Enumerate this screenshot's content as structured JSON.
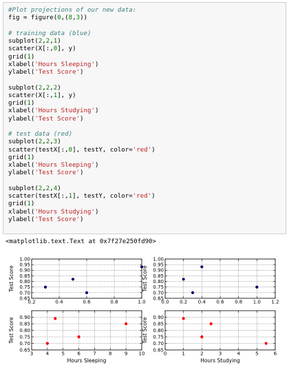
{
  "code": {
    "lines": [
      [
        {
          "t": "#Plot projections of our new data:",
          "k": "c"
        }
      ],
      [
        {
          "t": "fig = figure("
        },
        {
          "t": "0",
          "k": "n"
        },
        {
          "t": ",("
        },
        {
          "t": "8",
          "k": "n"
        },
        {
          "t": ","
        },
        {
          "t": "3",
          "k": "n"
        },
        {
          "t": "))"
        }
      ],
      [],
      [
        {
          "t": "# training data (blue)",
          "k": "c"
        }
      ],
      [
        {
          "t": "subplot("
        },
        {
          "t": "2",
          "k": "n"
        },
        {
          "t": ","
        },
        {
          "t": "2",
          "k": "n"
        },
        {
          "t": ","
        },
        {
          "t": "1",
          "k": "n"
        },
        {
          "t": ")"
        }
      ],
      [
        {
          "t": "scatter(X[:,"
        },
        {
          "t": "0",
          "k": "n"
        },
        {
          "t": "], y)"
        }
      ],
      [
        {
          "t": "grid("
        },
        {
          "t": "1",
          "k": "n"
        },
        {
          "t": ")"
        }
      ],
      [
        {
          "t": "xlabel("
        },
        {
          "t": "'Hours Sleeping'",
          "k": "s"
        },
        {
          "t": ")"
        }
      ],
      [
        {
          "t": "ylabel("
        },
        {
          "t": "'Test Score'",
          "k": "s"
        },
        {
          "t": ")"
        }
      ],
      [],
      [
        {
          "t": "subplot("
        },
        {
          "t": "2",
          "k": "n"
        },
        {
          "t": ","
        },
        {
          "t": "2",
          "k": "n"
        },
        {
          "t": ","
        },
        {
          "t": "2",
          "k": "n"
        },
        {
          "t": ")"
        }
      ],
      [
        {
          "t": "scatter(X[:,"
        },
        {
          "t": "1",
          "k": "n"
        },
        {
          "t": "], y)"
        }
      ],
      [
        {
          "t": "grid("
        },
        {
          "t": "1",
          "k": "n"
        },
        {
          "t": ")"
        }
      ],
      [
        {
          "t": "xlabel("
        },
        {
          "t": "'Hours Studying'",
          "k": "s"
        },
        {
          "t": ")"
        }
      ],
      [
        {
          "t": "ylabel("
        },
        {
          "t": "'Test Score'",
          "k": "s"
        },
        {
          "t": ")"
        }
      ],
      [],
      [
        {
          "t": "# test data (red)",
          "k": "c"
        }
      ],
      [
        {
          "t": "subplot("
        },
        {
          "t": "2",
          "k": "n"
        },
        {
          "t": ","
        },
        {
          "t": "2",
          "k": "n"
        },
        {
          "t": ","
        },
        {
          "t": "3",
          "k": "n"
        },
        {
          "t": ")"
        }
      ],
      [
        {
          "t": "scatter(testX[:,"
        },
        {
          "t": "0",
          "k": "n"
        },
        {
          "t": "], testY, color="
        },
        {
          "t": "'red'",
          "k": "s"
        },
        {
          "t": ")"
        }
      ],
      [
        {
          "t": "grid("
        },
        {
          "t": "1",
          "k": "n"
        },
        {
          "t": ")"
        }
      ],
      [
        {
          "t": "xlabel("
        },
        {
          "t": "'Hours Sleeping'",
          "k": "s"
        },
        {
          "t": ")"
        }
      ],
      [
        {
          "t": "ylabel("
        },
        {
          "t": "'Test Score'",
          "k": "s"
        },
        {
          "t": ")"
        }
      ],
      [],
      [
        {
          "t": "subplot("
        },
        {
          "t": "2",
          "k": "n"
        },
        {
          "t": ","
        },
        {
          "t": "2",
          "k": "n"
        },
        {
          "t": ","
        },
        {
          "t": "4",
          "k": "n"
        },
        {
          "t": ")"
        }
      ],
      [
        {
          "t": "scatter(testX[:,"
        },
        {
          "t": "1",
          "k": "n"
        },
        {
          "t": "], testY, color="
        },
        {
          "t": "'red'",
          "k": "s"
        },
        {
          "t": ")"
        }
      ],
      [
        {
          "t": "grid("
        },
        {
          "t": "1",
          "k": "n"
        },
        {
          "t": ")"
        }
      ],
      [
        {
          "t": "xlabel("
        },
        {
          "t": "'Hours Studying'",
          "k": "s"
        },
        {
          "t": ")"
        }
      ],
      [
        {
          "t": "ylabel("
        },
        {
          "t": "'Test Score'",
          "k": "s"
        },
        {
          "t": ")"
        }
      ]
    ]
  },
  "output_text": "<matplotlib.text.Text at 0x7f27e250fd90>",
  "colors": {
    "comment": "#408080",
    "string": "#ba2121",
    "number": "#008000",
    "cell_bg": "#f7f7f7",
    "training_points": "#00006b",
    "test_points": "#ff0000"
  },
  "chart_data": [
    {
      "type": "scatter",
      "xlabel": "",
      "ylabel": "Test Score",
      "xlim": [
        0.2,
        1.0
      ],
      "ylim": [
        0.65,
        1.0
      ],
      "xticks": [
        "0.2",
        "0.4",
        "0.6",
        "0.8",
        "1.0"
      ],
      "yticks": [
        "0.65",
        "0.70",
        "0.75",
        "0.80",
        "0.85",
        "0.90",
        "0.95",
        "1.00"
      ],
      "grid": true,
      "series": [
        {
          "x": [
            0.3,
            0.5,
            0.6,
            1.0
          ],
          "y": [
            0.75,
            0.82,
            0.7,
            0.93
          ],
          "color": "#00006b"
        }
      ]
    },
    {
      "type": "scatter",
      "xlabel": "",
      "ylabel": "Test Score",
      "xlim": [
        0.0,
        1.2
      ],
      "ylim": [
        0.65,
        1.0
      ],
      "xticks": [
        "0.0",
        "0.2",
        "0.4",
        "0.6",
        "0.8",
        "1.0",
        "1.2"
      ],
      "yticks": [
        "0.65",
        "0.70",
        "0.75",
        "0.80",
        "0.85",
        "0.90",
        "0.95",
        "1.00"
      ],
      "grid": true,
      "series": [
        {
          "x": [
            0.2,
            0.3,
            0.4,
            1.0
          ],
          "y": [
            0.82,
            0.7,
            0.93,
            0.75
          ],
          "color": "#00006b"
        }
      ]
    },
    {
      "type": "scatter",
      "xlabel": "Hours Sleeping",
      "ylabel": "Test Score",
      "xlim": [
        3,
        10
      ],
      "ylim": [
        0.65,
        0.95
      ],
      "xticks": [
        "3",
        "4",
        "5",
        "6",
        "7",
        "8",
        "9",
        "10"
      ],
      "yticks": [
        "0.65",
        "0.70",
        "0.75",
        "0.80",
        "0.85",
        "0.90"
      ],
      "grid": true,
      "series": [
        {
          "x": [
            4,
            4.5,
            6,
            9
          ],
          "y": [
            0.7,
            0.89,
            0.75,
            0.85
          ],
          "color": "#ff0000"
        }
      ]
    },
    {
      "type": "scatter",
      "xlabel": "Hours Studying",
      "ylabel": "Test Score",
      "xlim": [
        0,
        6
      ],
      "ylim": [
        0.65,
        0.95
      ],
      "xticks": [
        "0",
        "1",
        "2",
        "3",
        "4",
        "5",
        "6"
      ],
      "yticks": [
        "0.65",
        "0.70",
        "0.75",
        "0.80",
        "0.85",
        "0.90"
      ],
      "grid": true,
      "series": [
        {
          "x": [
            1,
            2,
            2.5,
            5.5
          ],
          "y": [
            0.89,
            0.75,
            0.85,
            0.7
          ],
          "color": "#ff0000"
        }
      ]
    }
  ]
}
